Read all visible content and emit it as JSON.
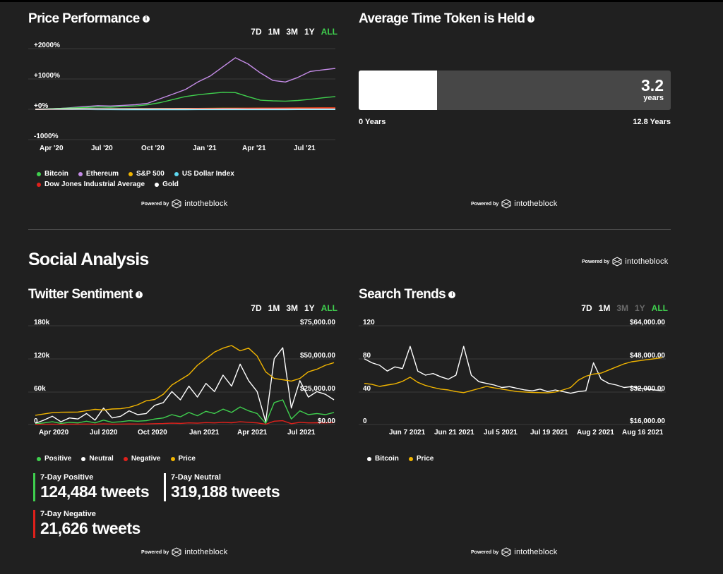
{
  "price_performance": {
    "title": "Price Performance",
    "ranges": [
      "7D",
      "1M",
      "3M",
      "1Y",
      "ALL"
    ],
    "active_range": "ALL",
    "legend": [
      {
        "label": "Bitcoin",
        "color": "#3fcf4e"
      },
      {
        "label": "Ethereum",
        "color": "#c58ce8"
      },
      {
        "label": "S&P 500",
        "color": "#f0b400"
      },
      {
        "label": "US Dollar Index",
        "color": "#5ed8f0"
      },
      {
        "label": "Dow Jones Industrial Average",
        "color": "#e0201b"
      },
      {
        "label": "Gold",
        "color": "#ffffff"
      }
    ],
    "powered_by": "Powered by",
    "brand": "intotheblock"
  },
  "average_time_held": {
    "title": "Average Time Token is Held",
    "value": "3.2",
    "unit": "years",
    "min_label": "0 Years",
    "max_label": "12.8 Years",
    "fill_fraction": 0.25,
    "powered_by": "Powered by",
    "brand": "intotheblock"
  },
  "social_analysis": {
    "title": "Social Analysis",
    "powered_by": "Powered by",
    "brand": "intotheblock"
  },
  "twitter_sentiment": {
    "title": "Twitter Sentiment",
    "ranges": [
      "7D",
      "1M",
      "3M",
      "1Y",
      "ALL"
    ],
    "active_range": "ALL",
    "legend": [
      {
        "label": "Positive",
        "color": "#3fcf4e"
      },
      {
        "label": "Neutral",
        "color": "#ffffff"
      },
      {
        "label": "Negative",
        "color": "#e0201b"
      },
      {
        "label": "Price",
        "color": "#f0b400"
      }
    ],
    "stats": [
      {
        "label": "7-Day Positive",
        "value": "124,484 tweets",
        "color": "#3fcf4e"
      },
      {
        "label": "7-Day Neutral",
        "value": "319,188 tweets",
        "color": "#ffffff"
      },
      {
        "label": "7-Day Negative",
        "value": "21,626 tweets",
        "color": "#e0201b"
      }
    ],
    "powered_by": "Powered by",
    "brand": "intotheblock"
  },
  "search_trends": {
    "title": "Search Trends",
    "ranges": [
      "7D",
      "1M",
      "3M",
      "1Y",
      "ALL"
    ],
    "active_range": "ALL",
    "disabled_ranges": [
      "3M",
      "1Y"
    ],
    "legend": [
      {
        "label": "Bitcoin",
        "color": "#ffffff"
      },
      {
        "label": "Price",
        "color": "#f0b400"
      }
    ],
    "powered_by": "Powered by",
    "brand": "intotheblock"
  },
  "chart_data": [
    {
      "id": "price_performance",
      "type": "line",
      "title": "Price Performance",
      "x_ticks": [
        "Apr '20",
        "Jul '20",
        "Oct '20",
        "Jan '21",
        "Apr '21",
        "Jul '21"
      ],
      "y_ticks": [
        "+2000%",
        "+1000%",
        "+0%",
        "-1000%"
      ],
      "ylim": [
        -1000,
        2000
      ],
      "series": [
        {
          "name": "Ethereum",
          "color": "#c58ce8",
          "values": [
            0,
            10,
            30,
            60,
            90,
            120,
            110,
            130,
            150,
            200,
            350,
            500,
            650,
            900,
            1100,
            1400,
            1700,
            1500,
            1200,
            950,
            900,
            1050,
            1250,
            1300,
            1350
          ]
        },
        {
          "name": "Bitcoin",
          "color": "#3fcf4e",
          "values": [
            0,
            15,
            30,
            45,
            60,
            80,
            70,
            90,
            110,
            150,
            220,
            320,
            420,
            480,
            520,
            560,
            550,
            420,
            300,
            280,
            270,
            290,
            330,
            380,
            420
          ]
        },
        {
          "name": "S&P 500",
          "color": "#f0b400",
          "values": [
            0,
            5,
            8,
            10,
            12,
            14,
            16,
            18,
            20,
            22,
            24,
            26,
            28,
            30,
            32,
            34,
            36,
            38,
            40,
            42,
            44,
            46,
            48,
            50,
            52
          ]
        },
        {
          "name": "US Dollar Index",
          "color": "#5ed8f0",
          "values": [
            0,
            -2,
            -4,
            -6,
            -8,
            -9,
            -10,
            -11,
            -12,
            -12,
            -12,
            -11,
            -11,
            -10,
            -10,
            -10,
            -10,
            -10,
            -9,
            -9,
            -9,
            -8,
            -8,
            -8,
            -8
          ]
        },
        {
          "name": "Dow Jones Industrial Average",
          "color": "#e0201b",
          "values": [
            0,
            3,
            5,
            7,
            9,
            11,
            13,
            15,
            17,
            19,
            21,
            23,
            25,
            27,
            29,
            31,
            33,
            35,
            37,
            39,
            41,
            43,
            45,
            47,
            49
          ]
        },
        {
          "name": "Gold",
          "color": "#ffffff",
          "values": [
            0,
            8,
            12,
            15,
            18,
            16,
            14,
            13,
            12,
            12,
            13,
            12,
            11,
            10,
            10,
            11,
            11,
            10,
            10,
            9,
            9,
            9,
            9,
            9,
            9
          ]
        }
      ]
    },
    {
      "id": "twitter_sentiment",
      "type": "line",
      "title": "Twitter Sentiment",
      "x_ticks": [
        "Apr 2020",
        "Jul 2020",
        "Oct 2020",
        "Jan 2021",
        "Apr 2021",
        "Jul 2021"
      ],
      "y_left_ticks": [
        "180k",
        "120k",
        "60k",
        "0"
      ],
      "y_right_ticks": [
        "$75,000.00",
        "$50,000.00",
        "$25,000.00",
        "$0.00"
      ],
      "ylim_left": [
        0,
        180000
      ],
      "ylim_right": [
        0,
        75000
      ],
      "series": [
        {
          "name": "Neutral",
          "color": "#ffffff",
          "axis": "left",
          "values": [
            2000,
            8000,
            15000,
            5000,
            12000,
            10000,
            20000,
            8000,
            30000,
            12000,
            15000,
            25000,
            18000,
            20000,
            35000,
            40000,
            60000,
            45000,
            70000,
            50000,
            75000,
            60000,
            90000,
            70000,
            110000,
            80000,
            60000,
            5000,
            120000,
            140000,
            30000,
            80000,
            50000,
            60000,
            55000,
            45000
          ]
        },
        {
          "name": "Positive",
          "color": "#3fcf4e",
          "axis": "left",
          "values": [
            1000,
            3000,
            5000,
            2000,
            4000,
            3000,
            6000,
            3000,
            8000,
            4000,
            5000,
            7000,
            6000,
            7000,
            10000,
            12000,
            18000,
            14000,
            22000,
            16000,
            24000,
            20000,
            28000,
            22000,
            32000,
            25000,
            20000,
            2000,
            40000,
            45000,
            10000,
            25000,
            18000,
            20000,
            18000,
            22000
          ]
        },
        {
          "name": "Negative",
          "color": "#e0201b",
          "axis": "left",
          "values": [
            200,
            500,
            800,
            400,
            700,
            600,
            900,
            500,
            1200,
            700,
            800,
            1000,
            900,
            1000,
            1500,
            1800,
            2500,
            2000,
            3000,
            2500,
            3500,
            3000,
            4000,
            3200,
            5000,
            4000,
            3000,
            500,
            6000,
            7000,
            1500,
            4000,
            3000,
            3200,
            3000,
            3500
          ]
        },
        {
          "name": "Price",
          "color": "#f0b400",
          "axis": "right",
          "values": [
            7000,
            8000,
            9000,
            9300,
            9400,
            9500,
            10500,
            11500,
            11000,
            11800,
            12000,
            13000,
            15000,
            18000,
            19000,
            23000,
            30000,
            34000,
            38000,
            45000,
            50000,
            55000,
            58000,
            60000,
            56000,
            58000,
            52000,
            40000,
            35000,
            34000,
            33000,
            35000,
            40000,
            42000,
            45000,
            47000
          ]
        }
      ]
    },
    {
      "id": "search_trends",
      "type": "line",
      "title": "Search Trends",
      "x_ticks": [
        "Jun 7 2021",
        "Jun 21 2021",
        "Jul 5 2021",
        "Jul 19 2021",
        "Aug 2 2021",
        "Aug 16 2021"
      ],
      "y_left_ticks": [
        "120",
        "80",
        "40",
        "0"
      ],
      "y_right_ticks": [
        "$64,000.00",
        "$48,000.00",
        "$32,000.00",
        "$16,000.00"
      ],
      "ylim_left": [
        0,
        120
      ],
      "ylim_right": [
        16000,
        64000
      ],
      "series": [
        {
          "name": "Bitcoin",
          "color": "#ffffff",
          "axis": "left",
          "values": [
            80,
            75,
            72,
            65,
            70,
            68,
            95,
            65,
            60,
            62,
            58,
            55,
            60,
            95,
            60,
            52,
            50,
            48,
            45,
            46,
            44,
            42,
            41,
            43,
            40,
            42,
            40,
            38,
            40,
            41,
            75,
            55,
            50,
            48,
            45,
            46,
            44,
            43,
            42,
            41
          ]
        },
        {
          "name": "Price",
          "color": "#f0b400",
          "axis": "right",
          "values": [
            36000,
            35500,
            34500,
            35200,
            35800,
            37000,
            39000,
            36500,
            35000,
            34000,
            33200,
            32800,
            32000,
            31500,
            32500,
            33500,
            34500,
            33800,
            33200,
            32600,
            32000,
            31800,
            31600,
            31500,
            31400,
            31800,
            32800,
            34000,
            37500,
            39500,
            40500,
            41000,
            42500,
            44000,
            45500,
            46500,
            47000,
            47500,
            48000,
            48500
          ]
        }
      ]
    }
  ]
}
